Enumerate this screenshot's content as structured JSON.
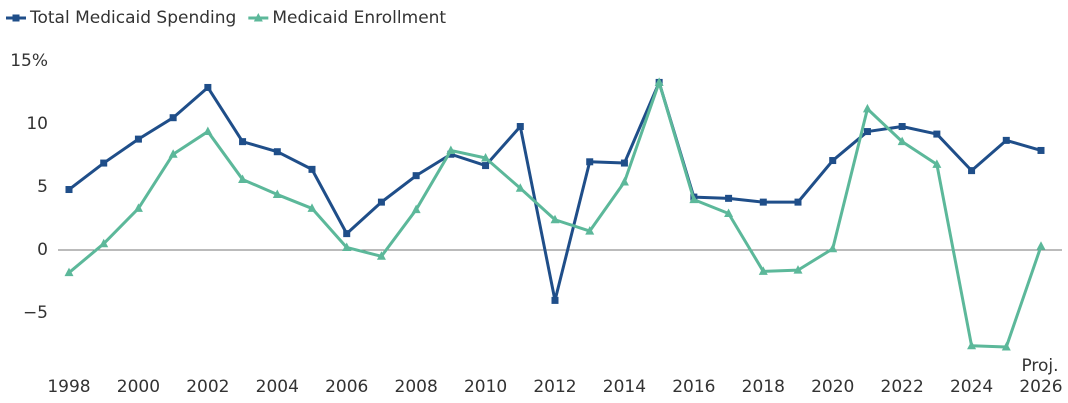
{
  "chart_data": {
    "type": "line",
    "x": [
      1998,
      1999,
      2000,
      2001,
      2002,
      2003,
      2004,
      2005,
      2006,
      2007,
      2008,
      2009,
      2010,
      2011,
      2012,
      2013,
      2014,
      2015,
      2016,
      2017,
      2018,
      2019,
      2020,
      2021,
      2022,
      2023,
      2024,
      2025,
      2026
    ],
    "series": [
      {
        "name": "Total Medicaid Spending",
        "color": "#1f4e89",
        "marker": "square",
        "values": [
          4.8,
          6.9,
          8.8,
          10.5,
          12.9,
          8.6,
          7.8,
          6.4,
          1.3,
          3.8,
          5.9,
          7.6,
          6.7,
          9.8,
          -4.0,
          7.0,
          6.9,
          13.3,
          4.2,
          4.1,
          3.8,
          3.8,
          7.1,
          9.4,
          9.8,
          9.2,
          6.3,
          8.7,
          7.9
        ]
      },
      {
        "name": "Medicaid Enrollment",
        "color": "#5cb89a",
        "marker": "triangle",
        "values": [
          -1.8,
          0.5,
          3.3,
          7.6,
          9.4,
          5.6,
          4.4,
          3.3,
          0.2,
          -0.5,
          3.2,
          7.9,
          7.3,
          4.9,
          2.4,
          1.5,
          5.4,
          13.3,
          4.0,
          2.9,
          -1.7,
          -1.6,
          0.1,
          11.2,
          8.6,
          6.8,
          -7.6,
          -7.7,
          0.3
        ]
      }
    ],
    "xlim": [
      1998,
      2026
    ],
    "xticks": [
      1998,
      2000,
      2002,
      2004,
      2006,
      2008,
      2010,
      2012,
      2014,
      2016,
      2018,
      2020,
      2022,
      2024,
      2026
    ],
    "ylim": [
      -8.5,
      15
    ],
    "yticks": [
      {
        "value": -5,
        "label": "−5"
      },
      0,
      5,
      10,
      {
        "value": 15,
        "label": "15%"
      }
    ],
    "annotation": "Proj.",
    "legend": "top-left"
  }
}
